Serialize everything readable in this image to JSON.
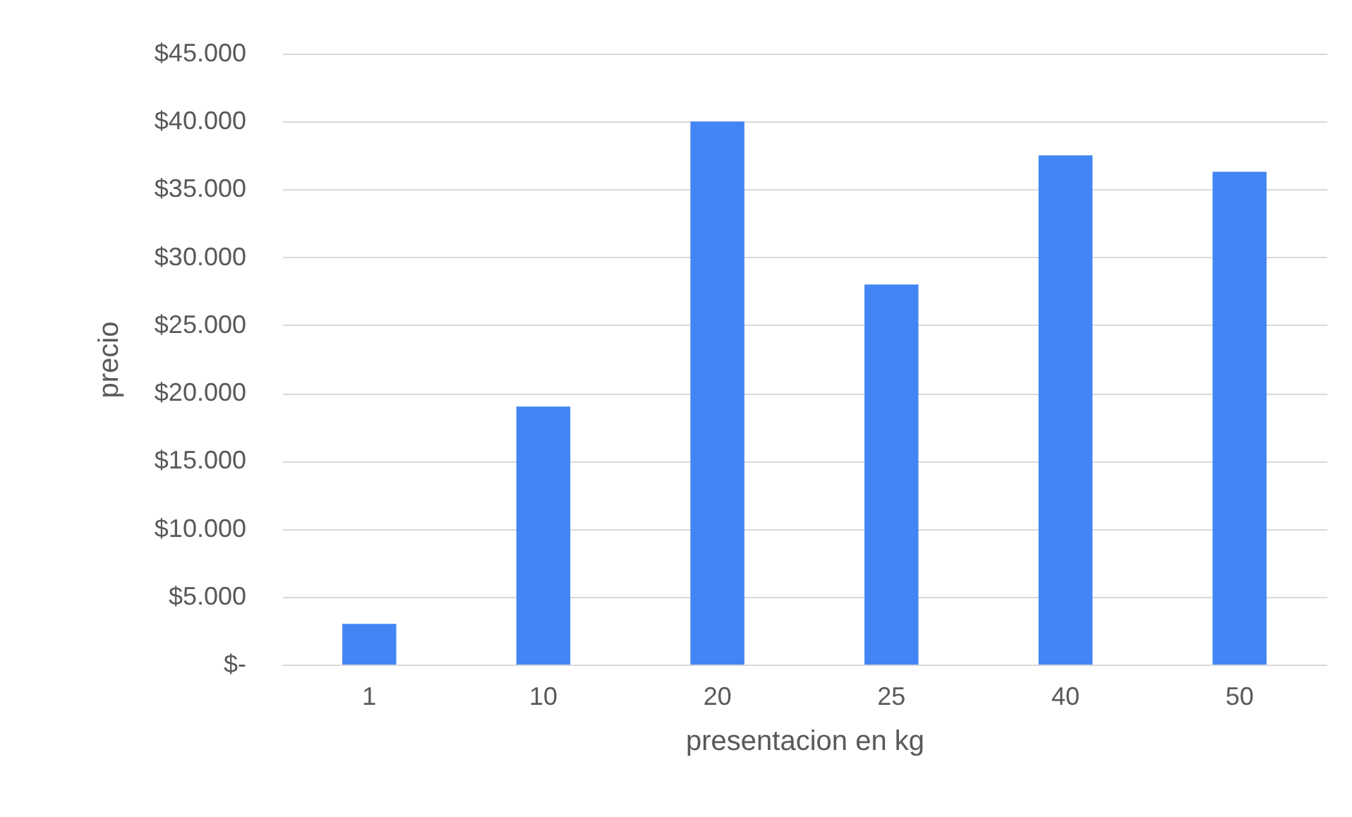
{
  "chart_data": {
    "type": "bar",
    "xlabel": "presentacion en kg",
    "ylabel": "precio",
    "categories": [
      "1",
      "10",
      "20",
      "25",
      "40",
      "50"
    ],
    "values": [
      3000,
      19000,
      40000,
      28000,
      37500,
      36300
    ],
    "color": "#4285f4",
    "ylim": [
      0,
      45000
    ],
    "yticks": [
      {
        "value": 0,
        "label": "$-"
      },
      {
        "value": 5000,
        "label": "$5.000"
      },
      {
        "value": 10000,
        "label": "$10.000"
      },
      {
        "value": 15000,
        "label": "$15.000"
      },
      {
        "value": 20000,
        "label": "$20.000"
      },
      {
        "value": 25000,
        "label": "$25.000"
      },
      {
        "value": 30000,
        "label": "$30.000"
      },
      {
        "value": 35000,
        "label": "$35.000"
      },
      {
        "value": 40000,
        "label": "$40.000"
      },
      {
        "value": 45000,
        "label": "$45.000"
      }
    ],
    "grid": "y"
  }
}
